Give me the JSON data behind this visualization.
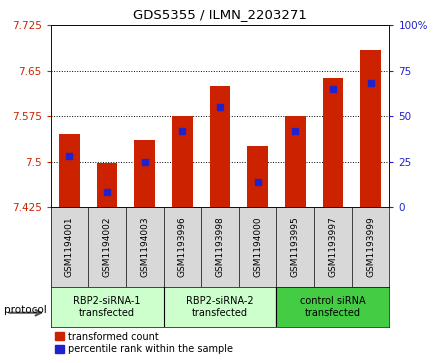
{
  "title": "GDS5355 / ILMN_2203271",
  "samples": [
    "GSM1194001",
    "GSM1194002",
    "GSM1194003",
    "GSM1193996",
    "GSM1193998",
    "GSM1194000",
    "GSM1193995",
    "GSM1193997",
    "GSM1193999"
  ],
  "red_values": [
    7.545,
    7.497,
    7.535,
    7.575,
    7.625,
    7.525,
    7.575,
    7.638,
    7.685
  ],
  "blue_values_pct": [
    28,
    8,
    25,
    42,
    55,
    14,
    42,
    65,
    68
  ],
  "ylim_left": [
    7.425,
    7.725
  ],
  "ylim_right": [
    0,
    100
  ],
  "yticks_left": [
    7.425,
    7.5,
    7.575,
    7.65,
    7.725
  ],
  "yticks_right": [
    0,
    25,
    50,
    75,
    100
  ],
  "groups": [
    {
      "label": "RBP2-siRNA-1\ntransfected",
      "start": 0,
      "end": 3,
      "color": "#ccffcc"
    },
    {
      "label": "RBP2-siRNA-2\ntransfected",
      "start": 3,
      "end": 6,
      "color": "#ccffcc"
    },
    {
      "label": "control siRNA\ntransfected",
      "start": 6,
      "end": 9,
      "color": "#44cc44"
    }
  ],
  "legend_red": "transformed count",
  "legend_blue": "percentile rank within the sample",
  "bar_width": 0.55,
  "bar_bottom": 7.425,
  "red_color": "#cc2200",
  "blue_color": "#2222cc",
  "protocol_label": "protocol",
  "sample_bg": "#d8d8d8",
  "plot_bg": "#ffffff",
  "left_tick_color": "#cc2200",
  "right_tick_color": "#2222cc"
}
